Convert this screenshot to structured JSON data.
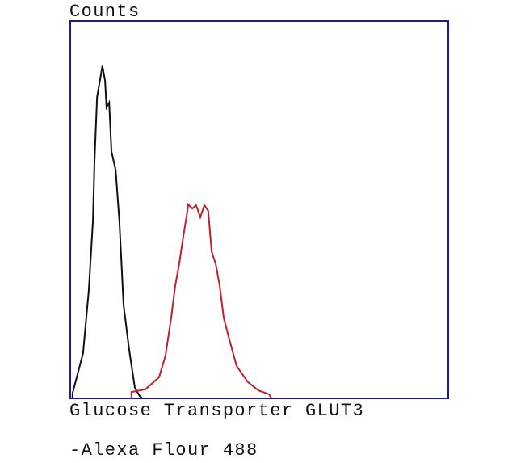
{
  "chart_data": {
    "type": "line",
    "title": "",
    "ylabel": "Counts",
    "xlabel_lines": [
      "Glucose Transporter GLUT3",
      "-Alexa Flour 488"
    ],
    "xlim": [
      0,
      100
    ],
    "ylim": [
      0,
      100
    ],
    "grid": false,
    "frame_color": "#1a1a9a",
    "series": [
      {
        "color": "#111111",
        "x": [
          0.6,
          3.4,
          4.9,
          6.0,
          6.4,
          7.1,
          8.1,
          8.5,
          9.2,
          9.6,
          10.3,
          10.9,
          12.0,
          13.0,
          14.1,
          15.6,
          17.1,
          18.4
        ],
        "y": [
          1.3,
          12.0,
          28.5,
          47.1,
          62.7,
          79.8,
          85.7,
          88.1,
          84.2,
          77.1,
          78.4,
          65.5,
          60.5,
          47.1,
          24.8,
          12.8,
          2.8,
          0.6
        ]
      },
      {
        "color": "#c0202a",
        "x": [
          16.2,
          19.9,
          23.5,
          25.2,
          26.7,
          27.8,
          28.8,
          29.9,
          31.0,
          31.2,
          32.3,
          33.3,
          34.4,
          35.5,
          36.5,
          37.4,
          38.5,
          39.5,
          40.6,
          41.9,
          44.0,
          47.0,
          49.8,
          52.6
        ],
        "y": [
          1.7,
          2.4,
          5.6,
          11.3,
          21.4,
          30.0,
          35.5,
          42.8,
          49.7,
          51.4,
          50.3,
          51.2,
          48.0,
          51.2,
          49.7,
          39.0,
          35.5,
          30.0,
          21.4,
          16.3,
          8.6,
          4.3,
          2.1,
          1.1
        ]
      }
    ]
  }
}
